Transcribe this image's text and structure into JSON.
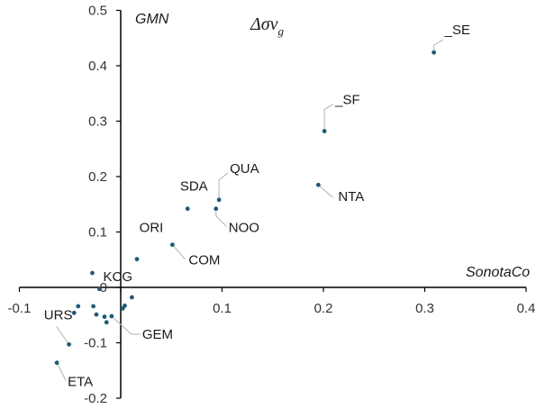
{
  "chart_data": {
    "type": "scatter",
    "title": "Δσv",
    "title_subscript": "g",
    "xlabel": "SonotaCo",
    "ylabel": "GMN",
    "xlim": [
      -0.1,
      0.4
    ],
    "ylim": [
      -0.2,
      0.5
    ],
    "x_ticks": [
      "-0.1",
      "0",
      "0.1",
      "0.2",
      "0.3",
      "0.4"
    ],
    "y_ticks": [
      "-0.2",
      "-0.1",
      "0",
      "0.1",
      "0.2",
      "0.3",
      "0.4",
      "0.5"
    ],
    "grid": false,
    "marker_color": "#1f5a78",
    "points": [
      {
        "x": 0.309,
        "y": 0.424,
        "label": "_SE"
      },
      {
        "x": 0.201,
        "y": 0.282,
        "label": "_SF"
      },
      {
        "x": 0.195,
        "y": 0.185,
        "label": "NTA"
      },
      {
        "x": 0.097,
        "y": 0.158,
        "label": "QUA"
      },
      {
        "x": 0.066,
        "y": 0.142,
        "label": "SDA"
      },
      {
        "x": 0.094,
        "y": 0.142,
        "label": "NOO"
      },
      {
        "x": 0.016,
        "y": 0.051,
        "label": "ORI"
      },
      {
        "x": 0.051,
        "y": 0.077,
        "label": "COM"
      },
      {
        "x": -0.028,
        "y": 0.026,
        "label": "KCG"
      },
      {
        "x": -0.051,
        "y": -0.103,
        "label": "URS"
      },
      {
        "x": -0.063,
        "y": -0.136,
        "label": "ETA"
      },
      {
        "x": -0.009,
        "y": -0.052,
        "label": "GEM"
      },
      {
        "x": -0.014,
        "y": -0.063,
        "label": ""
      },
      {
        "x": -0.016,
        "y": -0.053,
        "label": ""
      },
      {
        "x": -0.021,
        "y": -0.003,
        "label": ""
      },
      {
        "x": 0.004,
        "y": -0.033,
        "label": ""
      },
      {
        "x": 0.011,
        "y": -0.018,
        "label": ""
      },
      {
        "x": -0.042,
        "y": -0.034,
        "label": ""
      },
      {
        "x": -0.046,
        "y": -0.046,
        "label": ""
      },
      {
        "x": -0.027,
        "y": -0.034,
        "label": ""
      },
      {
        "x": -0.024,
        "y": -0.049,
        "label": ""
      },
      {
        "x": 0.002,
        "y": -0.038,
        "label": ""
      }
    ]
  }
}
